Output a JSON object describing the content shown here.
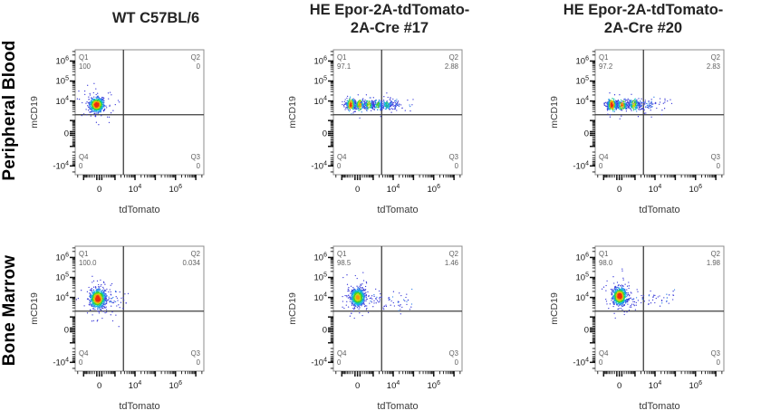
{
  "figure": {
    "column_titles": [
      {
        "lines": [
          "WT C57BL/6"
        ]
      },
      {
        "lines": [
          "HE Epor-2A-tdTomato-",
          "2A-Cre #17"
        ]
      },
      {
        "lines": [
          "HE Epor-2A-tdTomato-",
          "2A-Cre #20"
        ]
      }
    ],
    "row_labels": [
      "Peripheral Blood",
      "Bone Marrow"
    ]
  },
  "style": {
    "background_color": "#ffffff",
    "frame_color": "#8c8c8c",
    "gate_color": "#3d3d3d",
    "tick_color": "#141414",
    "tick_label_color": "#141414",
    "quadrant_label_color": "#606060",
    "axis_label_color": "#3a3a3a",
    "title_color": "#242424",
    "row_label_color": "#000000",
    "density_palette": [
      "#3a3ad9",
      "#2f80ea",
      "#12b7e6",
      "#16c98a",
      "#4ecf1f",
      "#c3df17",
      "#f59a11",
      "#ee2c12"
    ]
  },
  "chart_data": {
    "type": "scatter",
    "subtype": "flow-cytometry-pseudocolor-dot-plots",
    "grid": {
      "rows": [
        "Peripheral Blood",
        "Bone Marrow"
      ],
      "columns": [
        "WT C57BL/6",
        "HE Epor-2A-tdTomato-2A-Cre #17",
        "HE Epor-2A-tdTomato-2A-Cre #20"
      ]
    },
    "x_axis": {
      "label": "tdTomato",
      "scale": "biexponential",
      "tick_values": [
        0,
        10000,
        1000000
      ],
      "tick_labels": [
        "0",
        "10^4",
        "10^6"
      ]
    },
    "y_axis": {
      "label": "mCD19",
      "scale": "biexponential",
      "tick_values": [
        1000000,
        100000,
        10000,
        0,
        -10000
      ],
      "tick_labels": [
        "10^6",
        "10^5",
        "10^4",
        "0",
        "-10^4"
      ]
    },
    "gate": {
      "x_frac": 0.375,
      "y_frac": 0.52
    },
    "panels": [
      {
        "row": "Peripheral Blood",
        "column": "WT C57BL/6",
        "quadrants": {
          "Q1": {
            "label": "Q1",
            "value": "100"
          },
          "Q2": {
            "label": "Q2",
            "value": "0"
          },
          "Q3": {
            "label": "Q3",
            "value": "0"
          },
          "Q4": {
            "label": "Q4",
            "value": "0"
          }
        },
        "clusters": [
          {
            "kind": "blob",
            "cx": 0.167,
            "cy": 0.44,
            "rx": 0.026,
            "ry": 0.027,
            "n": 750,
            "core": 1
          }
        ]
      },
      {
        "row": "Peripheral Blood",
        "column": "HE Epor-2A-tdTomato-2A-Cre #17",
        "quadrants": {
          "Q1": {
            "label": "Q1",
            "value": "97.1"
          },
          "Q2": {
            "label": "Q2",
            "value": "2.88"
          },
          "Q3": {
            "label": "Q3",
            "value": "0"
          },
          "Q4": {
            "label": "Q4",
            "value": "0"
          }
        },
        "clusters": [
          {
            "kind": "band",
            "x0": 0.1,
            "x1": 0.5,
            "cy": 0.44,
            "sy": 0.02,
            "n": 720,
            "hot": [
              0.135,
              0.205,
              0.275,
              0.345,
              0.415
            ],
            "core": 0.95
          },
          {
            "kind": "tail",
            "x0": 0.48,
            "x1": 0.62,
            "cy": 0.44,
            "sy": 0.03,
            "n": 20
          }
        ]
      },
      {
        "row": "Peripheral Blood",
        "column": "HE Epor-2A-tdTomato-2A-Cre #20",
        "quadrants": {
          "Q1": {
            "label": "Q1",
            "value": "97.2"
          },
          "Q2": {
            "label": "Q2",
            "value": "2.83"
          },
          "Q3": {
            "label": "Q3",
            "value": "0"
          },
          "Q4": {
            "label": "Q4",
            "value": "0"
          }
        },
        "clusters": [
          {
            "kind": "band",
            "x0": 0.09,
            "x1": 0.44,
            "cy": 0.44,
            "sy": 0.02,
            "n": 680,
            "hot": [
              0.13,
              0.21,
              0.3
            ],
            "core": 1
          },
          {
            "kind": "tail",
            "x0": 0.42,
            "x1": 0.6,
            "cy": 0.43,
            "sy": 0.028,
            "n": 26
          }
        ]
      },
      {
        "row": "Bone Marrow",
        "column": "WT C57BL/6",
        "quadrants": {
          "Q1": {
            "label": "Q1",
            "value": "100.0"
          },
          "Q2": {
            "label": "Q2",
            "value": "0.034"
          },
          "Q3": {
            "label": "Q3",
            "value": "0"
          },
          "Q4": {
            "label": "Q4",
            "value": "0"
          }
        },
        "clusters": [
          {
            "kind": "blob",
            "cx": 0.176,
            "cy": 0.42,
            "rx": 0.028,
            "ry": 0.036,
            "n": 820,
            "core": 1
          },
          {
            "kind": "tail",
            "x0": 0.22,
            "x1": 0.42,
            "cy": 0.42,
            "sy": 0.04,
            "n": 40
          }
        ]
      },
      {
        "row": "Bone Marrow",
        "column": "HE Epor-2A-tdTomato-2A-Cre #17",
        "quadrants": {
          "Q1": {
            "label": "Q1",
            "value": "98.5"
          },
          "Q2": {
            "label": "Q2",
            "value": "1.46"
          },
          "Q3": {
            "label": "Q3",
            "value": "0"
          },
          "Q4": {
            "label": "Q4",
            "value": "0"
          }
        },
        "clusters": [
          {
            "kind": "blob",
            "cx": 0.19,
            "cy": 0.41,
            "rx": 0.026,
            "ry": 0.033,
            "n": 760,
            "core": 0.8
          },
          {
            "kind": "tail",
            "x0": 0.25,
            "x1": 0.62,
            "cy": 0.445,
            "sy": 0.035,
            "n": 70
          }
        ]
      },
      {
        "row": "Bone Marrow",
        "column": "HE Epor-2A-tdTomato-2A-Cre #20",
        "quadrants": {
          "Q1": {
            "label": "Q1",
            "value": "98.0"
          },
          "Q2": {
            "label": "Q2",
            "value": "1.98"
          },
          "Q3": {
            "label": "Q3",
            "value": "0"
          },
          "Q4": {
            "label": "Q4",
            "value": "0"
          }
        },
        "clusters": [
          {
            "kind": "blob",
            "cx": 0.19,
            "cy": 0.4,
            "rx": 0.025,
            "ry": 0.033,
            "n": 760,
            "core": 1
          },
          {
            "kind": "tail",
            "x0": 0.25,
            "x1": 0.62,
            "cy": 0.42,
            "sy": 0.035,
            "n": 60
          }
        ]
      }
    ]
  }
}
